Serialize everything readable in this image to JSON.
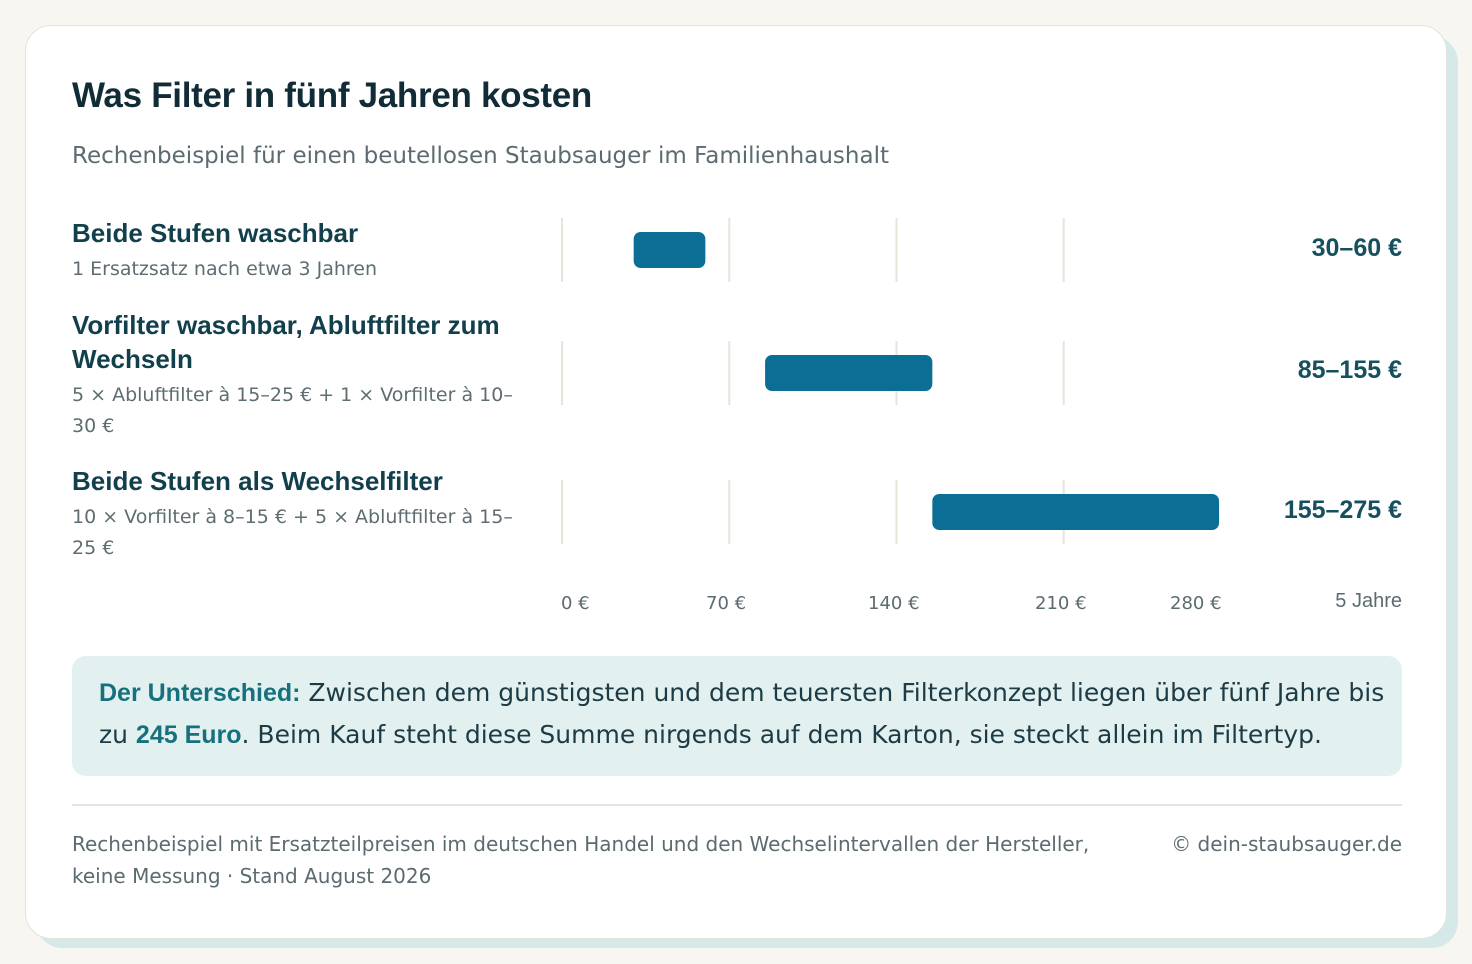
{
  "title": "Was Filter in fünf Jahren kosten",
  "subtitle": "Rechenbeispiel für einen beutellosen Staubsauger im Familienhaushalt",
  "chart_data": {
    "type": "bar",
    "orientation": "horizontal",
    "value_style": "range",
    "xlim": [
      0,
      280
    ],
    "x_ticks": [
      {
        "value": 0,
        "label": "0 €"
      },
      {
        "value": 70,
        "label": "70 €"
      },
      {
        "value": 140,
        "label": "140 €"
      },
      {
        "value": 210,
        "label": "210 €"
      },
      {
        "value": 280,
        "label": "280 €"
      }
    ],
    "axis_unit": "5 Jahre",
    "grid": true,
    "bar_color": "#0b6e95",
    "rows": [
      {
        "label": "Beide Stufen waschbar",
        "note": "1 Ersatzsatz nach etwa 3 Jahren",
        "range": [
          30,
          60
        ],
        "value_label": "30–60 €"
      },
      {
        "label": "Vorfilter waschbar, Abluftfilter zum Wechseln",
        "note": "5 × Abluftfilter à 15–25 € + 1 × Vorfilter à 10–30 €",
        "range": [
          85,
          155
        ],
        "value_label": "85–155 €"
      },
      {
        "label": "Beide Stufen als Wechselfilter",
        "note": "10 × Vorfilter à 8–15 € + 5 × Abluftfilter à 15–25 €",
        "range": [
          155,
          275
        ],
        "value_label": "155–275 €"
      }
    ]
  },
  "callout": {
    "lead": "Der Unterschied:",
    "text_before": " Zwischen dem günstigsten und dem teuersten Filterkonzept liegen über fünf Jahre bis zu ",
    "highlight": "245 Euro",
    "text_after": ". Beim Kauf steht diese Summe nirgends auf dem Karton, sie steckt allein im Filtertyp."
  },
  "footer": {
    "source": "Rechenbeispiel mit Ersatzteilpreisen im deutschen Handel und den Wechselintervallen der Hersteller, keine Messung · Stand August 2026",
    "copyright": "© dein-staubsauger.de"
  }
}
